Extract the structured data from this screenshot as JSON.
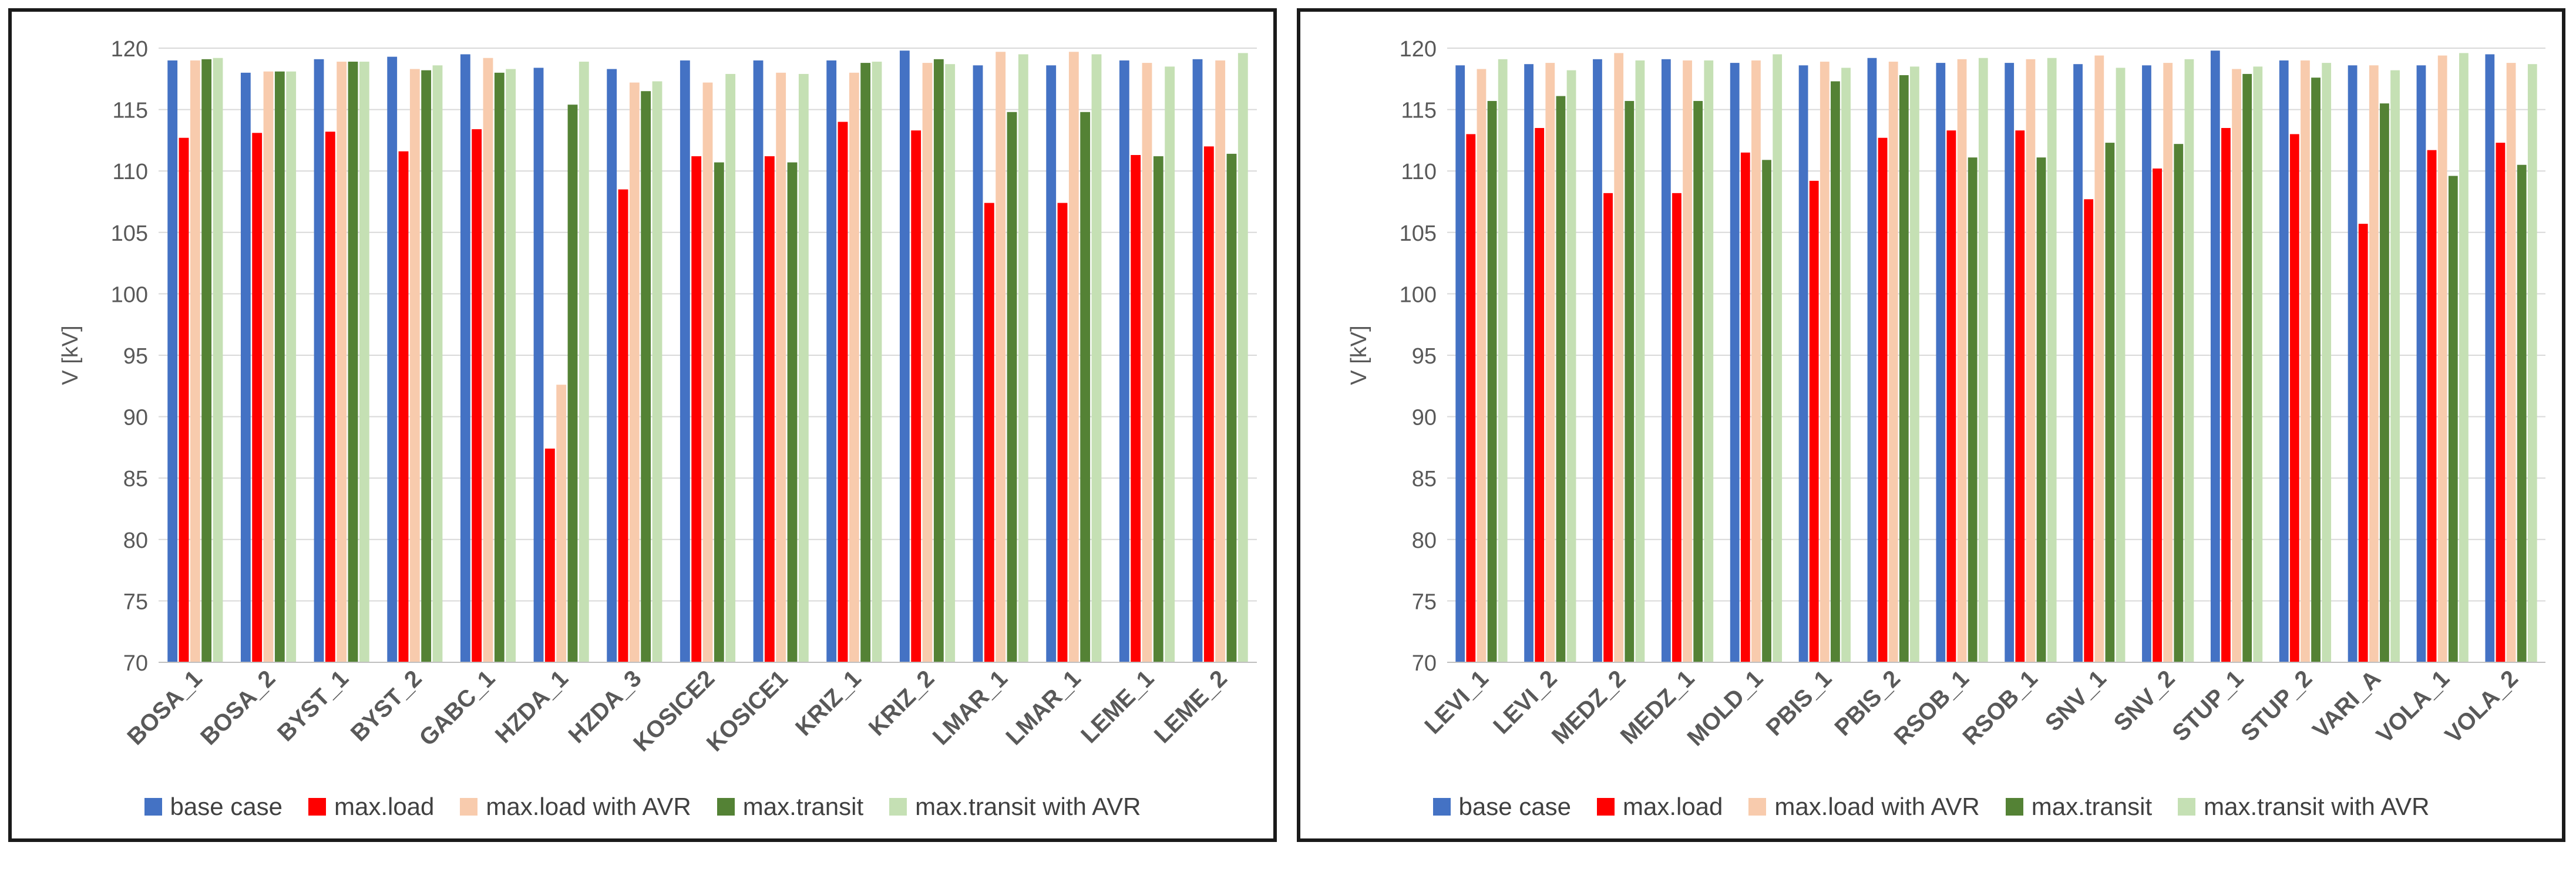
{
  "chart_data": [
    {
      "type": "bar",
      "title": "",
      "xlabel": "",
      "ylabel": "V [kV]",
      "ylim": [
        70,
        120
      ],
      "yticks": [
        70,
        75,
        80,
        85,
        90,
        95,
        100,
        105,
        110,
        115,
        120
      ],
      "grid": true,
      "legend_position": "bottom",
      "categories": [
        "BOSA_1",
        "BOSA_2",
        "BYST_1",
        "BYST_2",
        "GABC_1",
        "HZDA_1",
        "HZDA_3",
        "KOSICE2",
        "KOSICE1",
        "KRIZ_1",
        "KRIZ_2",
        "LMAR_1",
        "LMAR_1",
        "LEME_1",
        "LEME_2"
      ],
      "series": [
        {
          "name": "base case",
          "color": "#4472C4",
          "values": [
            119.0,
            118.0,
            119.1,
            119.3,
            119.5,
            118.4,
            118.3,
            119.0,
            119.0,
            119.0,
            119.8,
            118.6,
            118.6,
            119.0,
            119.1
          ]
        },
        {
          "name": "max.load",
          "color": "#FF0000",
          "values": [
            112.7,
            113.1,
            113.2,
            111.6,
            113.4,
            87.4,
            108.5,
            111.2,
            111.2,
            114.0,
            113.3,
            107.4,
            107.4,
            111.3,
            112.0
          ]
        },
        {
          "name": "max.load with AVR",
          "color": "#F8CBAD",
          "values": [
            119.0,
            118.1,
            118.9,
            118.3,
            119.2,
            92.6,
            117.2,
            117.2,
            118.0,
            118.0,
            118.8,
            119.7,
            119.7,
            118.8,
            119.0
          ]
        },
        {
          "name": "max.transit",
          "color": "#548235",
          "values": [
            119.1,
            118.1,
            118.9,
            118.2,
            118.0,
            115.4,
            116.5,
            110.7,
            110.7,
            118.8,
            119.1,
            114.8,
            114.8,
            111.2,
            111.4
          ]
        },
        {
          "name": "max.transit with AVR",
          "color": "#C5E0B4",
          "values": [
            119.2,
            118.1,
            118.9,
            118.6,
            118.3,
            118.9,
            117.3,
            117.9,
            117.9,
            118.9,
            118.7,
            119.5,
            119.5,
            118.5,
            119.6
          ]
        }
      ]
    },
    {
      "type": "bar",
      "title": "",
      "xlabel": "",
      "ylabel": "V [kV]",
      "ylim": [
        70,
        120
      ],
      "yticks": [
        70,
        75,
        80,
        85,
        90,
        95,
        100,
        105,
        110,
        115,
        120
      ],
      "grid": true,
      "legend_position": "bottom",
      "categories": [
        "LEVI_1",
        "LEVI_2",
        "MEDZ_2",
        "MEDZ_1",
        "MOLD_1",
        "PBIS_1",
        "PBIS_2",
        "RSOB_1",
        "RSOB_1",
        "SNV_1",
        "SNV_2",
        "STUP_1",
        "STUP_2",
        "VARI_A",
        "VOLA_1",
        "VOLA_2"
      ],
      "series": [
        {
          "name": "base case",
          "color": "#4472C4",
          "values": [
            118.6,
            118.7,
            119.1,
            119.1,
            118.8,
            118.6,
            119.2,
            118.8,
            118.8,
            118.7,
            118.6,
            119.8,
            119.0,
            118.6,
            118.6,
            119.5
          ]
        },
        {
          "name": "max.load",
          "color": "#FF0000",
          "values": [
            113.0,
            113.5,
            108.2,
            108.2,
            111.5,
            109.2,
            112.7,
            113.3,
            113.3,
            107.7,
            110.2,
            113.5,
            113.0,
            105.7,
            111.7,
            112.3
          ]
        },
        {
          "name": "max.load with AVR",
          "color": "#F8CBAD",
          "values": [
            118.3,
            118.8,
            119.6,
            119.0,
            119.0,
            118.9,
            118.9,
            119.1,
            119.1,
            119.4,
            118.8,
            118.3,
            119.0,
            118.6,
            119.4,
            118.8
          ]
        },
        {
          "name": "max.transit",
          "color": "#548235",
          "values": [
            115.7,
            116.1,
            115.7,
            115.7,
            110.9,
            117.3,
            117.8,
            111.1,
            111.1,
            112.3,
            112.2,
            117.9,
            117.6,
            115.5,
            109.6,
            110.5
          ]
        },
        {
          "name": "max.transit with AVR",
          "color": "#C5E0B4",
          "values": [
            119.1,
            118.2,
            119.0,
            119.0,
            119.5,
            118.4,
            118.5,
            119.2,
            119.2,
            118.4,
            119.1,
            118.5,
            118.8,
            118.2,
            119.6,
            118.7
          ]
        }
      ]
    }
  ]
}
